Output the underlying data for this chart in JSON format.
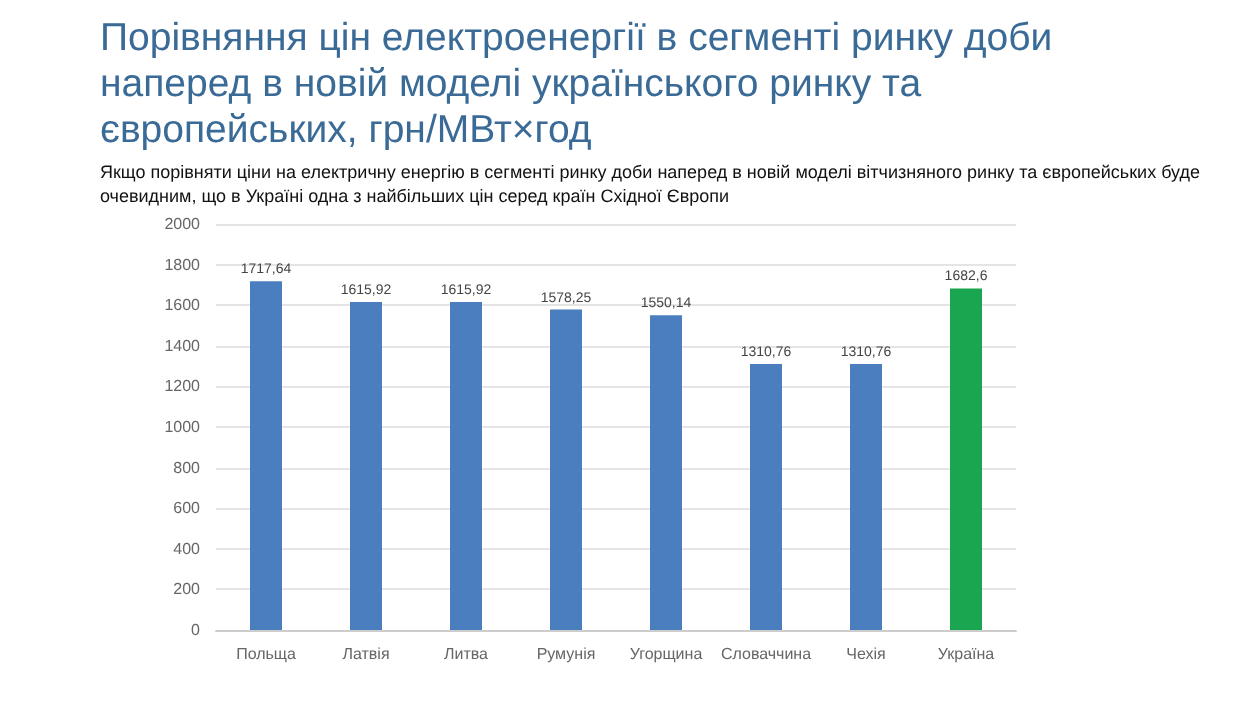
{
  "chart_data": {
    "type": "bar",
    "title": "Порівняння цін електроенергії в сегменті ринку доби наперед в новій моделі українського ринку та європейських, грн/МВт×год",
    "subtitle": "Якщо порівняти ціни на електричну енергію в сегменті ринку доби наперед в новій моделі вітчизняного ринку та європейських буде очевидним, що в Україні одна з найбільших цін серед країн Східної Європи",
    "categories": [
      "Польща",
      "Латвія",
      "Литва",
      "Румунія",
      "Угорщина",
      "Словаччина",
      "Чехія",
      "Україна"
    ],
    "values": [
      1717.64,
      1615.92,
      1615.92,
      1578.25,
      1550.14,
      1310.76,
      1310.76,
      1682.6
    ],
    "value_labels": [
      "1717,64",
      "1615,92",
      "1615,92",
      "1578,25",
      "1550,14",
      "1310,76",
      "1310,76",
      "1682,6"
    ],
    "colors": [
      "#4a7ebf",
      "#4a7ebf",
      "#4a7ebf",
      "#4a7ebf",
      "#4a7ebf",
      "#4a7ebf",
      "#4a7ebf",
      "#1aa650"
    ],
    "ylim": [
      0,
      2000
    ],
    "yticks": [
      0,
      200,
      400,
      600,
      800,
      1000,
      1200,
      1400,
      1600,
      1800,
      2000
    ],
    "grid": true
  }
}
